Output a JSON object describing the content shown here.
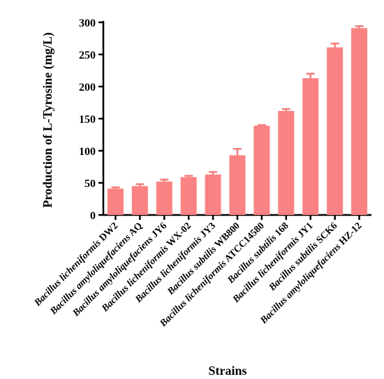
{
  "chart_data": {
    "type": "bar",
    "title": "",
    "xlabel": "Strains",
    "ylabel": "Production of L-Tyrosine (mg/L)",
    "ylim": [
      0,
      300
    ],
    "yticks": [
      0,
      50,
      100,
      150,
      200,
      250,
      300
    ],
    "grid": false,
    "legend": "none",
    "bar_color": "#fb8282",
    "categories": [
      {
        "genus": "Bacillus licheniformis",
        "strain": "DW2"
      },
      {
        "genus": "Bacillus amyloliquefaciens",
        "strain": "AQ"
      },
      {
        "genus": "Bacillus amyloliquefaciens",
        "strain": "JY6"
      },
      {
        "genus": "Bacillus licheniformis",
        "strain": "WX-02"
      },
      {
        "genus": "Bacillus licheniformis",
        "strain": "JY3"
      },
      {
        "genus": "Bacillus subtilis",
        "strain": "WB800"
      },
      {
        "genus": "Bacillus licheniformis",
        "strain": "ATCC14580"
      },
      {
        "genus": "Bacillus subtilis",
        "strain": "168"
      },
      {
        "genus": "Bacillus licheniformis",
        "strain": "JY1"
      },
      {
        "genus": "Bacillus subtilis",
        "strain": "SCK6"
      },
      {
        "genus": "Bacillus amyloliquefaciens",
        "strain": "HZ-12"
      }
    ],
    "values": [
      41,
      45,
      52,
      59,
      63,
      93,
      139,
      162,
      213,
      261,
      291
    ],
    "errors": [
      2,
      3,
      3,
      2,
      4,
      10,
      1,
      3,
      7,
      6,
      3
    ]
  }
}
